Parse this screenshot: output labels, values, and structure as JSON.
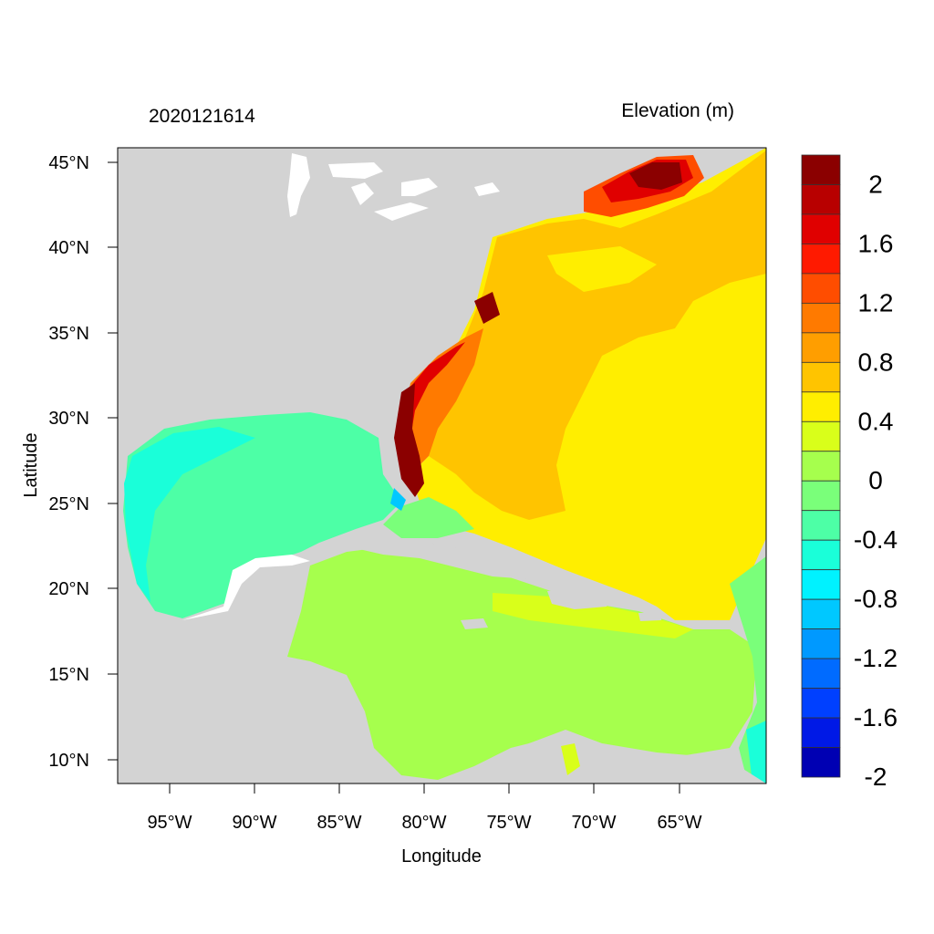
{
  "map": {
    "timestamp": "2020121614",
    "variable_title": "Elevation (m)",
    "x_axis_label": "Longitude",
    "y_axis_label": "Latitude",
    "lon_ticks": [
      "95°W",
      "90°W",
      "85°W",
      "80°W",
      "75°W",
      "70°W",
      "65°W"
    ],
    "lat_ticks": [
      "45°N",
      "40°N",
      "35°N",
      "30°N",
      "25°N",
      "20°N",
      "15°N",
      "10°N"
    ],
    "colors": {
      "land": "#d3d3d3",
      "frame": "#000000"
    }
  },
  "colorbar": {
    "labels": [
      "2",
      "1.6",
      "1.2",
      "0.8",
      "0.4",
      "0",
      "-0.4",
      "-0.8",
      "-1.2",
      "-1.6",
      "-2"
    ],
    "colors": [
      "#8b0000",
      "#b80000",
      "#e00000",
      "#ff1a00",
      "#ff4d00",
      "#ff7a00",
      "#ff9e00",
      "#ffc400",
      "#ffee00",
      "#d9ff1a",
      "#a6ff4d",
      "#7aff7a",
      "#4dffa6",
      "#1affd9",
      "#00f2ff",
      "#00c8ff",
      "#0099ff",
      "#006bff",
      "#0040ff",
      "#0019e6",
      "#0000b3"
    ]
  }
}
